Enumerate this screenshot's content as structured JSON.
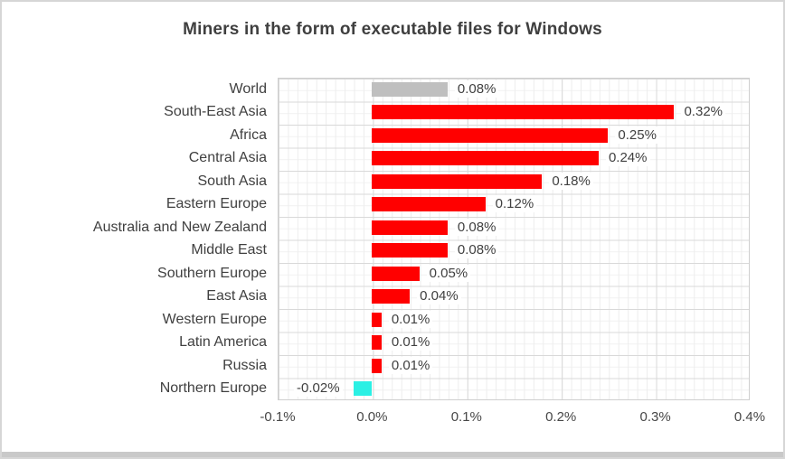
{
  "page": {
    "title": "Miners in the form of executable files for Windows"
  },
  "chart_data": {
    "type": "bar",
    "orientation": "horizontal",
    "title": "Miners in the form of executable files for Windows",
    "xlabel": "",
    "ylabel": "",
    "xlim": [
      -0.1,
      0.4
    ],
    "grid": "major and minor gridlines on",
    "legend": "none",
    "categories": [
      "World",
      "South-East Asia",
      "Africa",
      "Central Asia",
      "South Asia",
      "Eastern Europe",
      "Australia and New Zealand",
      "Middle East",
      "Southern Europe",
      "East Asia",
      "Western Europe",
      "Latin America",
      "Russia",
      "Northern Europe"
    ],
    "values": [
      0.08,
      0.32,
      0.25,
      0.24,
      0.18,
      0.12,
      0.08,
      0.08,
      0.05,
      0.04,
      0.01,
      0.01,
      0.01,
      -0.02
    ],
    "value_labels": [
      "0.08%",
      "0.32%",
      "0.25%",
      "0.24%",
      "0.18%",
      "0.12%",
      "0.08%",
      "0.08%",
      "0.05%",
      "0.04%",
      "0.01%",
      "0.01%",
      "0.01%",
      "-0.02%"
    ],
    "bar_colors": [
      "#bfbfbf",
      "#ff0000",
      "#ff0000",
      "#ff0000",
      "#ff0000",
      "#ff0000",
      "#ff0000",
      "#ff0000",
      "#ff0000",
      "#ff0000",
      "#ff0000",
      "#ff0000",
      "#ff0000",
      "#2bf0e4"
    ],
    "x_ticks": [
      {
        "value": -0.1,
        "label": "-0.1%"
      },
      {
        "value": 0.0,
        "label": "0.0%"
      },
      {
        "value": 0.1,
        "label": "0.1%"
      },
      {
        "value": 0.2,
        "label": "0.2%"
      },
      {
        "value": 0.3,
        "label": "0.3%"
      },
      {
        "value": 0.4,
        "label": "0.4%"
      }
    ],
    "colors": {
      "title_text": "#3f3f3f",
      "axis_text": "#474747",
      "label_text": "#404040",
      "bar_default": "#ff0000",
      "bar_world": "#bfbfbf",
      "bar_negative": "#2bf0e4",
      "grid_major": "#d9d9d9",
      "grid_minor": "#ededed",
      "plot_border": "#cfcfcf",
      "frame_border": "#d6d6d6",
      "frame_bottom": "#c9c9c9"
    }
  }
}
